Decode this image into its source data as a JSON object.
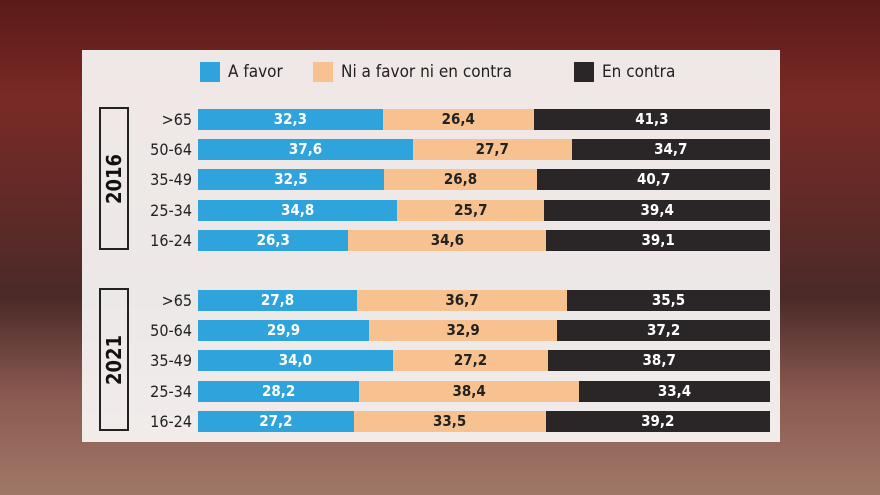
{
  "chart_data": {
    "type": "bar",
    "orientation": "horizontal-stacked-100",
    "colors": {
      "A favor": "#2fa3dc",
      "Ni a favor ni en contra": "#f7c28f",
      "En contra": "#2a2526"
    },
    "legend": [
      "A favor",
      "Ni a favor ni en contra",
      "En contra"
    ],
    "legend_placement": "top",
    "groups": [
      {
        "year": "2016",
        "categories": [
          ">65",
          "50-64",
          "35-49",
          "25-34",
          "16-24"
        ],
        "series": [
          {
            "name": "A favor",
            "values": [
              32.3,
              37.6,
              32.5,
              34.8,
              26.3
            ]
          },
          {
            "name": "Ni a favor ni en contra",
            "values": [
              26.4,
              27.7,
              26.8,
              25.7,
              34.6
            ]
          },
          {
            "name": "En contra",
            "values": [
              41.3,
              34.7,
              40.7,
              39.4,
              39.1
            ]
          }
        ]
      },
      {
        "year": "2021",
        "categories": [
          ">65",
          "50-64",
          "35-49",
          "25-34",
          "16-24"
        ],
        "series": [
          {
            "name": "A favor",
            "values": [
              27.8,
              29.9,
              34.0,
              28.2,
              27.2
            ]
          },
          {
            "name": "Ni a favor ni en contra",
            "values": [
              36.7,
              32.9,
              27.2,
              38.4,
              33.5
            ]
          },
          {
            "name": "En contra",
            "values": [
              35.5,
              37.2,
              38.7,
              33.4,
              39.2
            ]
          }
        ]
      }
    ]
  }
}
